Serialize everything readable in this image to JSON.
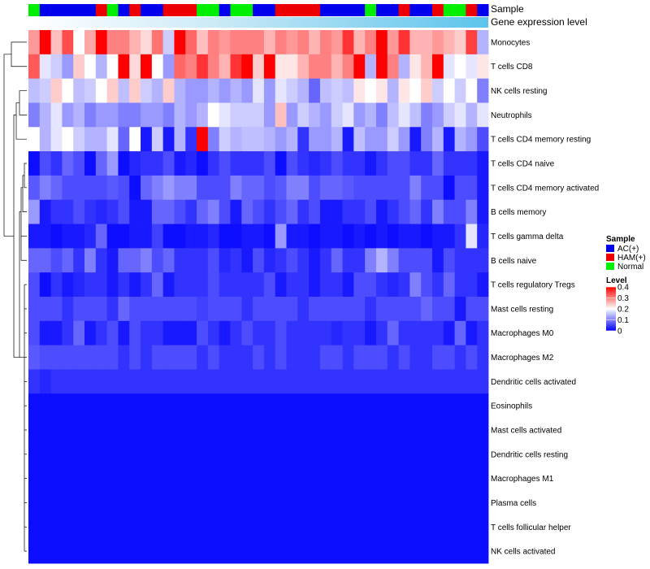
{
  "chart_data": {
    "type": "heatmap",
    "annotation_tracks": [
      {
        "name": "Sample",
        "label": "Sample"
      },
      {
        "name": "Gene expression level",
        "label": "Gene expression level"
      }
    ],
    "sample_groups": [
      "AC(+)",
      "HAM(+)",
      "Normal"
    ],
    "sample_group_colors": {
      "AC(+)": "#0000ee",
      "HAM(+)": "#ee0000",
      "Normal": "#00ee00"
    },
    "expression_track_color": "#87ceeb",
    "samples": [
      "Normal",
      "AC(+)",
      "AC(+)",
      "AC(+)",
      "AC(+)",
      "AC(+)",
      "HAM(+)",
      "Normal",
      "AC(+)",
      "HAM(+)",
      "AC(+)",
      "AC(+)",
      "HAM(+)",
      "HAM(+)",
      "HAM(+)",
      "Normal",
      "Normal",
      "AC(+)",
      "Normal",
      "Normal",
      "AC(+)",
      "AC(+)",
      "HAM(+)",
      "HAM(+)",
      "HAM(+)",
      "HAM(+)",
      "AC(+)",
      "AC(+)",
      "AC(+)",
      "AC(+)",
      "Normal",
      "AC(+)",
      "AC(+)",
      "HAM(+)",
      "AC(+)",
      "AC(+)",
      "HAM(+)",
      "Normal",
      "Normal",
      "HAM(+)",
      "AC(+)"
    ],
    "rows": [
      "Monocytes",
      "T cells CD8",
      "NK cells resting",
      "Neutrophils",
      "T cells CD4 memory resting",
      "T cells CD4 naive",
      "T cells CD4 memory activated",
      "B cells memory",
      "T cells gamma delta",
      "B cells naive",
      "T cells regulatory  Tregs",
      "Mast cells resting",
      "Macrophages M0",
      "Macrophages M2",
      "Dendritic cells activated",
      "Eosinophils",
      "Mast cells activated",
      "Dendritic cells resting",
      "Macrophages M1",
      "Plasma cells",
      "T cells follicular helper",
      "NK cells activated"
    ],
    "values": [
      [
        0.28,
        0.4,
        0.25,
        0.34,
        0.2,
        0.27,
        0.4,
        0.3,
        0.3,
        0.26,
        0.23,
        0.31,
        0.16,
        0.4,
        0.32,
        0.25,
        0.3,
        0.28,
        0.3,
        0.3,
        0.3,
        0.26,
        0.3,
        0.28,
        0.3,
        0.26,
        0.3,
        0.28,
        0.36,
        0.26,
        0.3,
        0.4,
        0.28,
        0.36,
        0.26,
        0.26,
        0.28,
        0.26,
        0.24,
        0.35,
        0.14
      ],
      [
        0.33,
        0.18,
        0.16,
        0.12,
        0.24,
        0.2,
        0.14,
        0.2,
        0.4,
        0.23,
        0.4,
        0.2,
        0.12,
        0.32,
        0.3,
        0.36,
        0.3,
        0.26,
        0.36,
        0.4,
        0.24,
        0.4,
        0.22,
        0.22,
        0.26,
        0.3,
        0.3,
        0.26,
        0.3,
        0.4,
        0.14,
        0.4,
        0.3,
        0.14,
        0.22,
        0.26,
        0.4,
        0.18,
        0.2,
        0.18,
        0.22
      ],
      [
        0.15,
        0.16,
        0.24,
        0.2,
        0.15,
        0.16,
        0.2,
        0.24,
        0.15,
        0.24,
        0.16,
        0.14,
        0.24,
        0.14,
        0.12,
        0.12,
        0.14,
        0.12,
        0.14,
        0.12,
        0.18,
        0.12,
        0.18,
        0.16,
        0.14,
        0.08,
        0.15,
        0.16,
        0.15,
        0.22,
        0.2,
        0.22,
        0.14,
        0.22,
        0.2,
        0.24,
        0.16,
        0.2,
        0.16,
        0.2,
        0.1
      ],
      [
        0.1,
        0.14,
        0.18,
        0.12,
        0.14,
        0.1,
        0.12,
        0.12,
        0.1,
        0.1,
        0.12,
        0.12,
        0.1,
        0.14,
        0.12,
        0.14,
        0.2,
        0.18,
        0.16,
        0.16,
        0.16,
        0.12,
        0.25,
        0.12,
        0.16,
        0.14,
        0.12,
        0.16,
        0.18,
        0.12,
        0.14,
        0.1,
        0.15,
        0.18,
        0.15,
        0.1,
        0.12,
        0.16,
        0.18,
        0.14,
        0.18
      ],
      [
        0.2,
        0.14,
        0.18,
        0.2,
        0.16,
        0.14,
        0.14,
        0.18,
        0.08,
        0.2,
        0.02,
        0.16,
        0.02,
        0.14,
        0.04,
        0.4,
        0.1,
        0.16,
        0.14,
        0.15,
        0.15,
        0.14,
        0.12,
        0.14,
        0.04,
        0.12,
        0.12,
        0.14,
        0.02,
        0.15,
        0.12,
        0.12,
        0.16,
        0.12,
        0.02,
        0.1,
        0.14,
        0.02,
        0.14,
        0.12,
        0.06
      ],
      [
        0.01,
        0.06,
        0.04,
        0.08,
        0.06,
        0.01,
        0.08,
        0.12,
        0.01,
        0.03,
        0.04,
        0.04,
        0.06,
        0.02,
        0.03,
        0.01,
        0.04,
        0.06,
        0.04,
        0.04,
        0.04,
        0.06,
        0.01,
        0.06,
        0.04,
        0.03,
        0.04,
        0.06,
        0.04,
        0.04,
        0.02,
        0.04,
        0.06,
        0.06,
        0.04,
        0.04,
        0.08,
        0.04,
        0.04,
        0.04,
        0.02
      ],
      [
        0.07,
        0.1,
        0.08,
        0.06,
        0.06,
        0.06,
        0.06,
        0.07,
        0.06,
        0.01,
        0.08,
        0.1,
        0.12,
        0.1,
        0.1,
        0.06,
        0.06,
        0.06,
        0.1,
        0.08,
        0.08,
        0.06,
        0.07,
        0.1,
        0.1,
        0.06,
        0.08,
        0.08,
        0.07,
        0.06,
        0.06,
        0.06,
        0.06,
        0.06,
        0.1,
        0.06,
        0.06,
        0.01,
        0.06,
        0.06,
        0.02
      ],
      [
        0.12,
        0.02,
        0.04,
        0.04,
        0.06,
        0.04,
        0.03,
        0.04,
        0.06,
        0.02,
        0.02,
        0.08,
        0.08,
        0.06,
        0.04,
        0.08,
        0.1,
        0.06,
        0.02,
        0.08,
        0.06,
        0.04,
        0.06,
        0.08,
        0.04,
        0.06,
        0.02,
        0.02,
        0.04,
        0.04,
        0.06,
        0.02,
        0.04,
        0.06,
        0.08,
        0.04,
        0.1,
        0.06,
        0.06,
        0.1,
        0.02
      ],
      [
        0.02,
        0.02,
        0.01,
        0.02,
        0.02,
        0.03,
        0.08,
        0.01,
        0.01,
        0.02,
        0.02,
        0.05,
        0.01,
        0.01,
        0.02,
        0.02,
        0.03,
        0.01,
        0.01,
        0.02,
        0.02,
        0.01,
        0.12,
        0.02,
        0.02,
        0.01,
        0.02,
        0.02,
        0.01,
        0.02,
        0.01,
        0.02,
        0.01,
        0.02,
        0.02,
        0.01,
        0.02,
        0.02,
        0.04,
        0.18,
        0.03
      ],
      [
        0.08,
        0.08,
        0.06,
        0.08,
        0.04,
        0.1,
        0.04,
        0.02,
        0.08,
        0.08,
        0.1,
        0.06,
        0.08,
        0.04,
        0.04,
        0.04,
        0.06,
        0.03,
        0.04,
        0.02,
        0.06,
        0.03,
        0.04,
        0.06,
        0.04,
        0.02,
        0.04,
        0.08,
        0.04,
        0.04,
        0.1,
        0.14,
        0.1,
        0.06,
        0.06,
        0.06,
        0.02,
        0.06,
        0.04,
        0.04,
        0.04
      ],
      [
        0.06,
        0.01,
        0.04,
        0.02,
        0.03,
        0.04,
        0.04,
        0.02,
        0.04,
        0.02,
        0.04,
        0.08,
        0.02,
        0.04,
        0.04,
        0.04,
        0.06,
        0.04,
        0.04,
        0.04,
        0.04,
        0.06,
        0.02,
        0.04,
        0.04,
        0.02,
        0.04,
        0.04,
        0.02,
        0.06,
        0.06,
        0.04,
        0.03,
        0.04,
        0.1,
        0.06,
        0.04,
        0.08,
        0.04,
        0.04,
        0.02
      ],
      [
        0.06,
        0.06,
        0.06,
        0.04,
        0.06,
        0.06,
        0.06,
        0.04,
        0.08,
        0.06,
        0.06,
        0.06,
        0.06,
        0.06,
        0.06,
        0.05,
        0.06,
        0.06,
        0.06,
        0.04,
        0.06,
        0.06,
        0.06,
        0.06,
        0.04,
        0.06,
        0.06,
        0.06,
        0.06,
        0.06,
        0.04,
        0.06,
        0.06,
        0.06,
        0.06,
        0.08,
        0.06,
        0.06,
        0.02,
        0.06,
        0.06
      ],
      [
        0.06,
        0.02,
        0.02,
        0.04,
        0.08,
        0.02,
        0.04,
        0.06,
        0.02,
        0.06,
        0.04,
        0.04,
        0.02,
        0.02,
        0.02,
        0.06,
        0.04,
        0.02,
        0.04,
        0.06,
        0.04,
        0.04,
        0.06,
        0.04,
        0.04,
        0.04,
        0.04,
        0.03,
        0.04,
        0.04,
        0.02,
        0.04,
        0.08,
        0.04,
        0.04,
        0.04,
        0.04,
        0.02,
        0.08,
        0.02,
        0.04
      ],
      [
        0.07,
        0.06,
        0.06,
        0.06,
        0.06,
        0.06,
        0.06,
        0.06,
        0.04,
        0.06,
        0.04,
        0.06,
        0.06,
        0.06,
        0.06,
        0.04,
        0.06,
        0.04,
        0.04,
        0.04,
        0.06,
        0.04,
        0.06,
        0.04,
        0.04,
        0.04,
        0.06,
        0.06,
        0.04,
        0.06,
        0.06,
        0.06,
        0.04,
        0.06,
        0.04,
        0.04,
        0.06,
        0.06,
        0.04,
        0.06,
        0.04
      ],
      [
        0.04,
        0.03,
        0.04,
        0.04,
        0.04,
        0.04,
        0.04,
        0.04,
        0.04,
        0.04,
        0.04,
        0.04,
        0.04,
        0.04,
        0.04,
        0.04,
        0.04,
        0.04,
        0.04,
        0.04,
        0.04,
        0.04,
        0.04,
        0.04,
        0.04,
        0.04,
        0.04,
        0.04,
        0.04,
        0.04,
        0.04,
        0.04,
        0.04,
        0.04,
        0.04,
        0.04,
        0.04,
        0.04,
        0.04,
        0.04,
        0.04
      ],
      [
        0.01,
        0.01,
        0.01,
        0.01,
        0.01,
        0.01,
        0.01,
        0.01,
        0.01,
        0.01,
        0.01,
        0.01,
        0.01,
        0.01,
        0.01,
        0.01,
        0.01,
        0.01,
        0.01,
        0.01,
        0.01,
        0.01,
        0.01,
        0.01,
        0.01,
        0.01,
        0.01,
        0.01,
        0.01,
        0.01,
        0.01,
        0.01,
        0.01,
        0.01,
        0.01,
        0.01,
        0.01,
        0.01,
        0.01,
        0.01,
        0.01
      ],
      [
        0.01,
        0.01,
        0.01,
        0.01,
        0.01,
        0.01,
        0.01,
        0.01,
        0.01,
        0.01,
        0.01,
        0.01,
        0.01,
        0.01,
        0.01,
        0.01,
        0.01,
        0.01,
        0.01,
        0.01,
        0.01,
        0.01,
        0.01,
        0.01,
        0.01,
        0.01,
        0.01,
        0.01,
        0.01,
        0.01,
        0.01,
        0.01,
        0.01,
        0.01,
        0.01,
        0.01,
        0.01,
        0.01,
        0.01,
        0.01,
        0.01
      ],
      [
        0.01,
        0.01,
        0.01,
        0.01,
        0.01,
        0.01,
        0.01,
        0.01,
        0.01,
        0.01,
        0.01,
        0.01,
        0.01,
        0.01,
        0.01,
        0.01,
        0.01,
        0.01,
        0.01,
        0.01,
        0.01,
        0.01,
        0.01,
        0.01,
        0.01,
        0.01,
        0.01,
        0.01,
        0.01,
        0.01,
        0.01,
        0.01,
        0.01,
        0.01,
        0.01,
        0.01,
        0.01,
        0.01,
        0.01,
        0.01,
        0.01
      ],
      [
        0.01,
        0.01,
        0.01,
        0.01,
        0.01,
        0.01,
        0.01,
        0.01,
        0.01,
        0.01,
        0.01,
        0.01,
        0.01,
        0.01,
        0.01,
        0.01,
        0.01,
        0.01,
        0.01,
        0.01,
        0.01,
        0.01,
        0.01,
        0.01,
        0.01,
        0.01,
        0.01,
        0.01,
        0.01,
        0.01,
        0.01,
        0.01,
        0.01,
        0.01,
        0.01,
        0.01,
        0.01,
        0.01,
        0.01,
        0.01,
        0.01
      ],
      [
        0.01,
        0.01,
        0.01,
        0.01,
        0.01,
        0.01,
        0.01,
        0.01,
        0.01,
        0.01,
        0.01,
        0.01,
        0.01,
        0.01,
        0.01,
        0.01,
        0.01,
        0.01,
        0.01,
        0.01,
        0.01,
        0.01,
        0.01,
        0.01,
        0.01,
        0.01,
        0.01,
        0.01,
        0.01,
        0.01,
        0.01,
        0.01,
        0.01,
        0.01,
        0.01,
        0.01,
        0.01,
        0.01,
        0.01,
        0.01,
        0.01
      ],
      [
        0.01,
        0.01,
        0.01,
        0.01,
        0.01,
        0.01,
        0.01,
        0.01,
        0.01,
        0.01,
        0.01,
        0.01,
        0.01,
        0.01,
        0.01,
        0.01,
        0.01,
        0.01,
        0.01,
        0.01,
        0.01,
        0.01,
        0.01,
        0.01,
        0.01,
        0.01,
        0.01,
        0.01,
        0.01,
        0.01,
        0.01,
        0.01,
        0.01,
        0.01,
        0.01,
        0.01,
        0.01,
        0.01,
        0.01,
        0.01,
        0.01
      ],
      [
        0.01,
        0.01,
        0.01,
        0.01,
        0.01,
        0.01,
        0.01,
        0.01,
        0.01,
        0.01,
        0.01,
        0.01,
        0.01,
        0.01,
        0.01,
        0.01,
        0.01,
        0.01,
        0.01,
        0.01,
        0.01,
        0.01,
        0.01,
        0.01,
        0.01,
        0.01,
        0.01,
        0.01,
        0.01,
        0.01,
        0.01,
        0.01,
        0.01,
        0.01,
        0.01,
        0.01,
        0.01,
        0.01,
        0.01,
        0.01,
        0.01
      ]
    ],
    "color_scale": {
      "min": 0,
      "mid": 0.2,
      "max": 0.4,
      "low_color": "#0000ff",
      "mid_color": "#ffffff",
      "high_color": "#ff0000"
    },
    "legend": {
      "sample_title": "Sample",
      "sample_items": [
        "AC(+)",
        "HAM(+)",
        "Normal"
      ],
      "level_title": "Level",
      "level_ticks": [
        "0.4",
        "0.3",
        "0.2",
        "0.1",
        "0"
      ],
      "level_tick_values": [
        0.4,
        0.3,
        0.2,
        0.1,
        0
      ]
    },
    "row_dendrogram": true
  }
}
